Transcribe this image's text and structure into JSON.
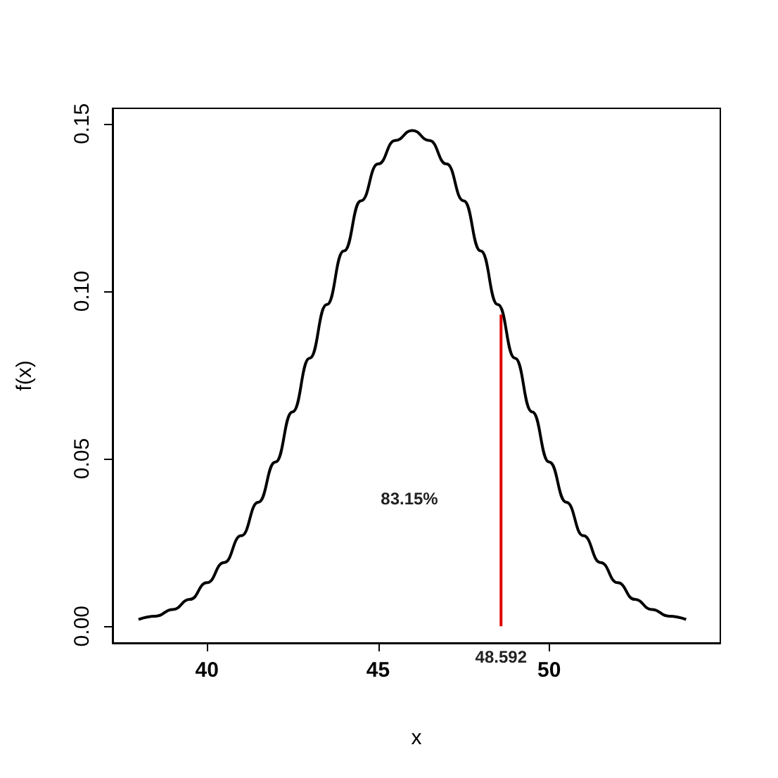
{
  "chart_data": {
    "type": "line",
    "xlabel": "x",
    "ylabel": "f(x)",
    "xlim": [
      37.24,
      55
    ],
    "xticks": [
      40,
      45,
      50
    ],
    "ylim": [
      -0.005,
      0.1546
    ],
    "yticks": [
      {
        "value": 0,
        "label": "0.00"
      },
      {
        "value": 0.05,
        "label": "0.05"
      },
      {
        "value": 0.1,
        "label": "0.10"
      },
      {
        "value": 0.15,
        "label": "0.15"
      }
    ],
    "grid": false,
    "marker": "none",
    "line_style": "solid",
    "series": [
      {
        "color": "#000000",
        "x": [
          38,
          38.5,
          39,
          39.5,
          40,
          40.5,
          41,
          41.5,
          42,
          42.5,
          43,
          43.5,
          44,
          44.5,
          45,
          45.5,
          46,
          46.5,
          47,
          47.5,
          48,
          48.5,
          49,
          49.5,
          50,
          50.5,
          51,
          51.5,
          52,
          52.5,
          53,
          53.5,
          54
        ],
        "values": [
          0.002,
          0.003,
          0.005,
          0.008,
          0.013,
          0.019,
          0.027,
          0.037,
          0.049,
          0.064,
          0.08,
          0.096,
          0.112,
          0.127,
          0.138,
          0.145,
          0.148,
          0.145,
          0.138,
          0.127,
          0.112,
          0.096,
          0.08,
          0.064,
          0.049,
          0.037,
          0.027,
          0.019,
          0.013,
          0.008,
          0.005,
          0.003,
          0.002
        ]
      },
      {
        "color": "#e00000",
        "x": [
          48.592,
          48.592
        ],
        "values": [
          0,
          0.093
        ]
      }
    ],
    "annotations": [
      "83.15%",
      "48.592"
    ]
  }
}
